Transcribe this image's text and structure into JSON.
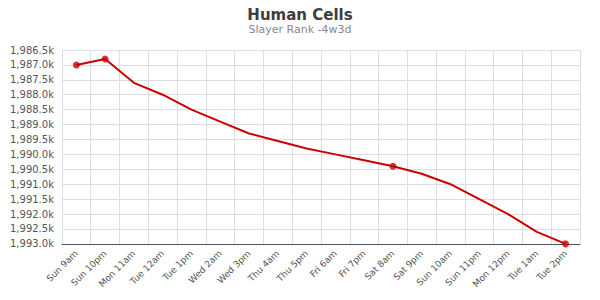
{
  "chart_data": {
    "type": "line",
    "title": "Human Cells",
    "subtitle": "Slayer Rank -4w3d",
    "categories": [
      "Sun 9am",
      "Sun 10pm",
      "Mon 11am",
      "Tue 12am",
      "Tue 1pm",
      "Wed 2am",
      "Wed 3pm",
      "Thu 4am",
      "Thu 5pm",
      "Fri 6am",
      "Fri 7pm",
      "Sat 8am",
      "Sat 9pm",
      "Sun 10am",
      "Sun 11pm",
      "Mon 12pm",
      "Tue 1am",
      "Tue 2pm"
    ],
    "series": [
      {
        "type": "line",
        "color": "#cc0000",
        "values": [
          1987000,
          1986800,
          1987600,
          1988000,
          1988500,
          1988900,
          1989300,
          1989550,
          1989800,
          1990000,
          1990200,
          1990400,
          1990650,
          1991000,
          1991500,
          1992000,
          1992600,
          1993000
        ]
      },
      {
        "type": "scatter",
        "color": "#cc0000",
        "marker": "circle",
        "values": [
          1987000,
          1986800,
          null,
          null,
          null,
          null,
          null,
          null,
          null,
          null,
          null,
          1990400,
          null,
          null,
          null,
          null,
          null,
          1993000
        ]
      }
    ],
    "ylim": [
      1993000,
      1986500
    ],
    "yticks": [
      {
        "value": 1986500,
        "label": "1,986.5k"
      },
      {
        "value": 1987000,
        "label": "1,987.0k"
      },
      {
        "value": 1987500,
        "label": "1,987.5k"
      },
      {
        "value": 1988000,
        "label": "1,988.0k"
      },
      {
        "value": 1988500,
        "label": "1,988.5k"
      },
      {
        "value": 1989000,
        "label": "1,989.0k"
      },
      {
        "value": 1989500,
        "label": "1,989.5k"
      },
      {
        "value": 1990000,
        "label": "1,990.0k"
      },
      {
        "value": 1990500,
        "label": "1,990.5k"
      },
      {
        "value": 1991000,
        "label": "1,991.0k"
      },
      {
        "value": 1991500,
        "label": "1,991.5k"
      },
      {
        "value": 1992000,
        "label": "1,992.0k"
      },
      {
        "value": 1992500,
        "label": "1,992.5k"
      },
      {
        "value": 1993000,
        "label": "1,993.0k"
      }
    ],
    "grid": true
  }
}
